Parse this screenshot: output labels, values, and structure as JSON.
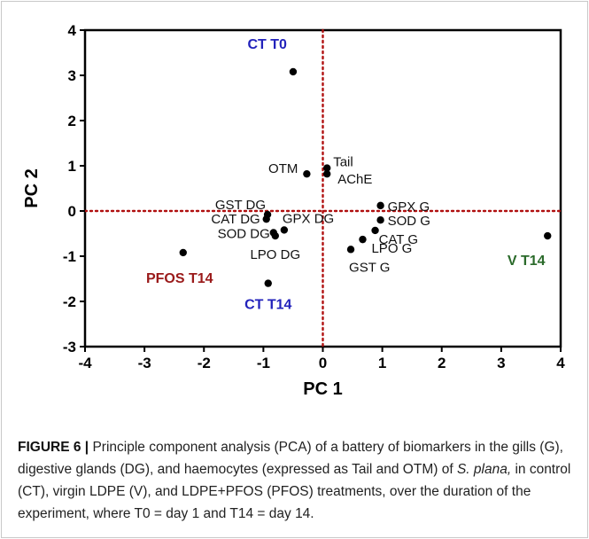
{
  "chart_data": {
    "type": "scatter",
    "title": "",
    "xlabel": "PC 1",
    "ylabel": "PC 2",
    "xlim": [
      -4,
      4
    ],
    "ylim": [
      -3,
      4
    ],
    "xticks": [
      "-4",
      "-3",
      "-2",
      "-1",
      "0",
      "1",
      "2",
      "3",
      "4"
    ],
    "yticks": [
      "-3",
      "-2",
      "-1",
      "0",
      "1",
      "2",
      "3",
      "4"
    ],
    "grid": false,
    "reference_lines": {
      "x": 0,
      "y": 0,
      "color": "#b01010",
      "style": "dotted"
    },
    "marker_color": "#000000",
    "points": [
      {
        "label": "CT T0",
        "x": -0.5,
        "y": 3.08,
        "label_color": "#2222bb",
        "bold": true
      },
      {
        "label": "Tail",
        "x": 0.07,
        "y": 0.95,
        "label_color": "#111111",
        "bold": false
      },
      {
        "label": "AChE",
        "x": 0.07,
        "y": 0.82,
        "label_color": "#111111",
        "bold": false
      },
      {
        "label": "OTM",
        "x": -0.27,
        "y": 0.82,
        "label_color": "#111111",
        "bold": false
      },
      {
        "label": "GST DG",
        "x": -0.93,
        "y": -0.08,
        "label_color": "#111111",
        "bold": false
      },
      {
        "label": "CAT DG",
        "x": -0.95,
        "y": -0.18,
        "label_color": "#111111",
        "bold": false
      },
      {
        "label": "GPX DG",
        "x": -0.65,
        "y": -0.42,
        "label_color": "#111111",
        "bold": false
      },
      {
        "label": "SOD DG",
        "x": -0.83,
        "y": -0.48,
        "label_color": "#111111",
        "bold": false
      },
      {
        "label": "LPO DG",
        "x": -0.8,
        "y": -0.55,
        "label_color": "#111111",
        "bold": false
      },
      {
        "label": "GPX G",
        "x": 0.97,
        "y": 0.12,
        "label_color": "#111111",
        "bold": false
      },
      {
        "label": "SOD G",
        "x": 0.97,
        "y": -0.2,
        "label_color": "#111111",
        "bold": false
      },
      {
        "label": "CAT G",
        "x": 0.88,
        "y": -0.43,
        "label_color": "#111111",
        "bold": false
      },
      {
        "label": "LPO G",
        "x": 0.67,
        "y": -0.63,
        "label_color": "#111111",
        "bold": false
      },
      {
        "label": "GST G",
        "x": 0.47,
        "y": -0.85,
        "label_color": "#111111",
        "bold": false
      },
      {
        "label": "PFOS T14",
        "x": -2.35,
        "y": -0.92,
        "label_color": "#9a1a1a",
        "bold": true
      },
      {
        "label": "CT T14",
        "x": -0.92,
        "y": -1.6,
        "label_color": "#2222bb",
        "bold": true
      },
      {
        "label": "V T14",
        "x": 3.78,
        "y": -0.55,
        "label_color": "#2a6a2a",
        "bold": true
      }
    ]
  },
  "caption": {
    "label": "FIGURE 6 |",
    "text_before_species": " Principle component analysis (PCA) of a battery of biomarkers in the gills (G), digestive glands (DG), and haemocytes (expressed as Tail and OTM) of ",
    "species": "S. plana,",
    "text_after_species": " in control (CT), virgin LDPE (V), and LDPE+PFOS (PFOS) treatments, over the duration of the experiment, where T0 = day 1 and T14 = day 14."
  }
}
